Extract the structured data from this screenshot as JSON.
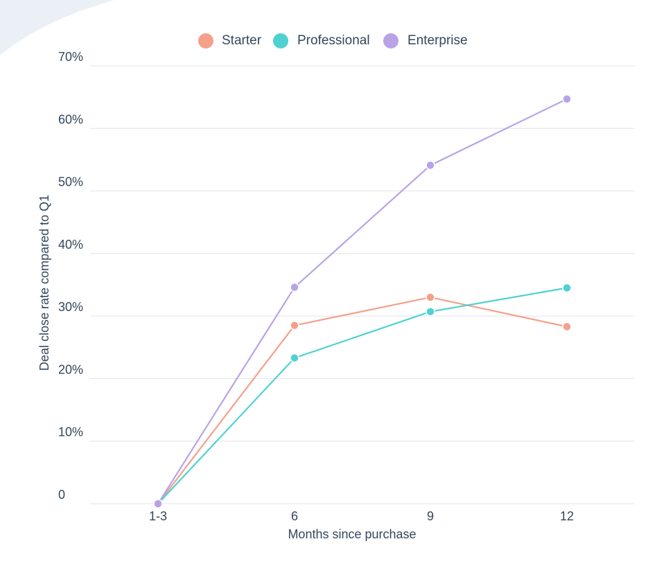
{
  "chart_data": {
    "type": "line",
    "categories": [
      "1-3",
      "6",
      "9",
      "12"
    ],
    "series": [
      {
        "name": "Starter",
        "color": "#f4a08a",
        "values": [
          0,
          28.5,
          33.0,
          28.3
        ]
      },
      {
        "name": "Professional",
        "color": "#4fd1d1",
        "values": [
          0,
          23.3,
          30.7,
          34.5
        ]
      },
      {
        "name": "Enterprise",
        "color": "#b8a3e6",
        "values": [
          0,
          34.6,
          54.1,
          64.7
        ]
      }
    ],
    "yticks": [
      0,
      10,
      20,
      30,
      40,
      50,
      60,
      70
    ],
    "ytick_labels": [
      "0",
      "10%",
      "20%",
      "30%",
      "40%",
      "50%",
      "60%",
      "70%"
    ],
    "ylim": [
      0,
      70
    ],
    "xlabel": "Months since purchase",
    "ylabel": "Deal close rate compared to Q1",
    "title": "",
    "grid": true,
    "legend_position": "top-center"
  },
  "colors": {
    "grid": "#dfe3eb",
    "axis_text": "#33475b",
    "background_accent": "#eaf0f6"
  }
}
